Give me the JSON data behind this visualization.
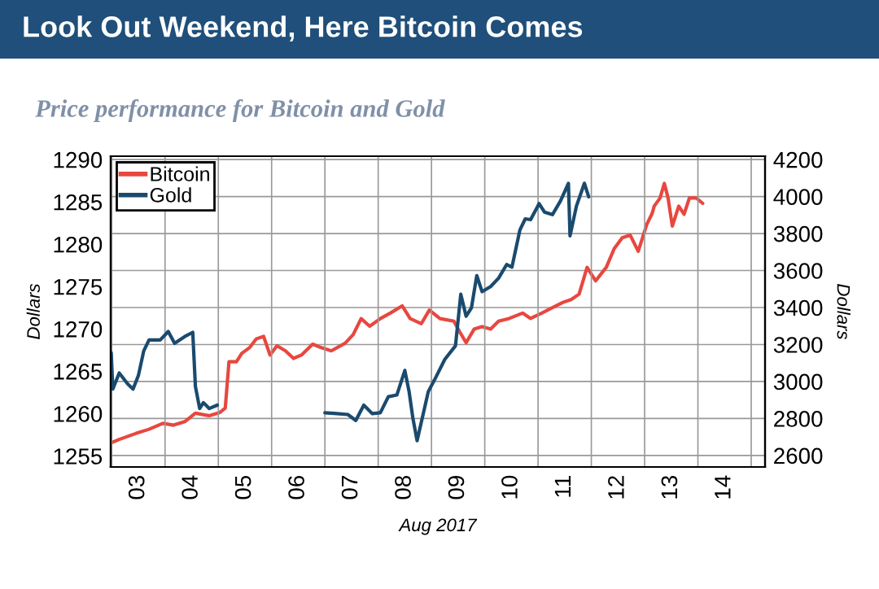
{
  "chart_data": {
    "type": "line",
    "title": "Look Out Weekend, Here Bitcoin Comes",
    "subtitle": "Price performance for Bitcoin and Gold",
    "xlabel": "Aug 2017",
    "ylabel": "Dollars",
    "y2label": "Dollars",
    "xlim": [
      2.48,
      14.76
    ],
    "xticks": [
      {
        "value": 2.5,
        "label": null
      },
      {
        "value": 3,
        "label": "03"
      },
      {
        "value": 3.5,
        "label": null
      },
      {
        "value": 4,
        "label": "04"
      },
      {
        "value": 4.5,
        "label": null
      },
      {
        "value": 5,
        "label": "05"
      },
      {
        "value": 5.5,
        "label": null
      },
      {
        "value": 6,
        "label": "06"
      },
      {
        "value": 6.5,
        "label": null
      },
      {
        "value": 7,
        "label": "07"
      },
      {
        "value": 7.5,
        "label": null
      },
      {
        "value": 8,
        "label": "08"
      },
      {
        "value": 8.5,
        "label": null
      },
      {
        "value": 9,
        "label": "09"
      },
      {
        "value": 9.5,
        "label": null
      },
      {
        "value": 10,
        "label": "10"
      },
      {
        "value": 10.5,
        "label": null
      },
      {
        "value": 11,
        "label": "11"
      },
      {
        "value": 11.5,
        "label": null
      },
      {
        "value": 12,
        "label": "12"
      },
      {
        "value": 12.5,
        "label": null
      },
      {
        "value": 13,
        "label": "13"
      },
      {
        "value": 13.5,
        "label": null
      },
      {
        "value": 14,
        "label": "14"
      },
      {
        "value": 14.5,
        "label": null
      }
    ],
    "ylim": [
      1253.7,
      1290.4
    ],
    "yticks": [
      1255,
      1260,
      1265,
      1270,
      1275,
      1280,
      1285,
      1290
    ],
    "y2lim": [
      2538,
      4218
    ],
    "y2ticks": [
      2600,
      2800,
      3000,
      3200,
      3400,
      3600,
      3800,
      4000,
      4200
    ],
    "grid": true,
    "legend": "top left",
    "series": [
      {
        "name": "Bitcoin",
        "color": "#e8473f",
        "axis": "y2",
        "x": [
          2.49,
          2.64,
          2.95,
          3.2,
          3.46,
          3.66,
          3.87,
          4.07,
          4.33,
          4.53,
          4.63,
          4.7,
          4.84,
          4.94,
          5.09,
          5.21,
          5.35,
          5.47,
          5.6,
          5.76,
          5.91,
          6.06,
          6.27,
          6.42,
          6.62,
          6.88,
          7.03,
          7.18,
          7.34,
          7.54,
          7.74,
          7.95,
          8.1,
          8.31,
          8.46,
          8.66,
          8.92,
          9.03,
          9.15,
          9.3,
          9.45,
          9.61,
          9.76,
          9.96,
          10.21,
          10.36,
          10.57,
          10.77,
          10.97,
          11.12,
          11.27,
          11.42,
          11.58,
          11.78,
          11.93,
          12.08,
          12.23,
          12.38,
          12.54,
          12.64,
          12.68,
          12.79,
          12.87,
          12.94,
          13.02,
          13.14,
          13.24,
          13.34,
          13.47,
          13.59
        ],
        "values": [
          2669,
          2687,
          2719,
          2742,
          2774,
          2764,
          2783,
          2829,
          2815,
          2833,
          2856,
          3107,
          3107,
          3152,
          3184,
          3230,
          3244,
          3143,
          3193,
          3166,
          3125,
          3143,
          3202,
          3184,
          3166,
          3207,
          3253,
          3340,
          3299,
          3340,
          3372,
          3409,
          3340,
          3313,
          3386,
          3340,
          3326,
          3268,
          3210,
          3283,
          3297,
          3283,
          3326,
          3341,
          3370,
          3341,
          3370,
          3399,
          3428,
          3443,
          3472,
          3617,
          3544,
          3617,
          3719,
          3777,
          3791,
          3704,
          3849,
          3908,
          3948,
          3992,
          4071,
          3992,
          3840,
          3948,
          3904,
          3992,
          3992,
          3963
        ]
      },
      {
        "name": "Gold",
        "color": "#1a4a6e",
        "x": [
          2.49,
          2.52,
          2.64,
          2.8,
          2.9,
          3.0,
          3.1,
          3.2,
          3.41,
          3.56,
          3.68,
          3.87,
          4.02,
          4.07,
          4.15,
          4.22,
          4.33,
          4.48,
          5.5,
          6.5,
          6.72,
          6.93,
          7.08,
          7.23,
          7.39,
          7.54,
          7.69,
          7.85,
          8.0,
          8.08,
          8.15,
          8.23,
          8.31,
          8.44,
          8.55,
          8.75,
          8.95,
          9.05,
          9.15,
          9.25,
          9.35,
          9.45,
          9.61,
          9.76,
          9.91,
          10.01,
          10.16,
          10.26,
          10.36,
          10.52,
          10.62,
          10.77,
          10.92,
          11.07,
          11.1,
          11.22,
          11.37,
          11.45
        ],
        "values": [
          1267.2,
          1262.9,
          1264.8,
          1263.5,
          1262.9,
          1264.5,
          1267.4,
          1268.7,
          1268.7,
          1269.7,
          1268.3,
          1269.1,
          1269.6,
          1263.2,
          1260.6,
          1261.3,
          1260.6,
          1261.0,
          null,
          1260.1,
          1260.0,
          1259.9,
          1259.2,
          1261.0,
          1260.0,
          1260.1,
          1262.0,
          1262.2,
          1265.1,
          1262.6,
          1259.5,
          1256.8,
          1259.0,
          1262.6,
          1263.9,
          1266.4,
          1268.0,
          1274.1,
          1271.5,
          1272.5,
          1276.3,
          1274.4,
          1275.0,
          1276.0,
          1277.6,
          1277.3,
          1281.7,
          1283.0,
          1282.9,
          1284.8,
          1283.8,
          1283.5,
          1285.1,
          1287.2,
          1281.0,
          1284.5,
          1287.2,
          1285.6
        ]
      }
    ]
  }
}
